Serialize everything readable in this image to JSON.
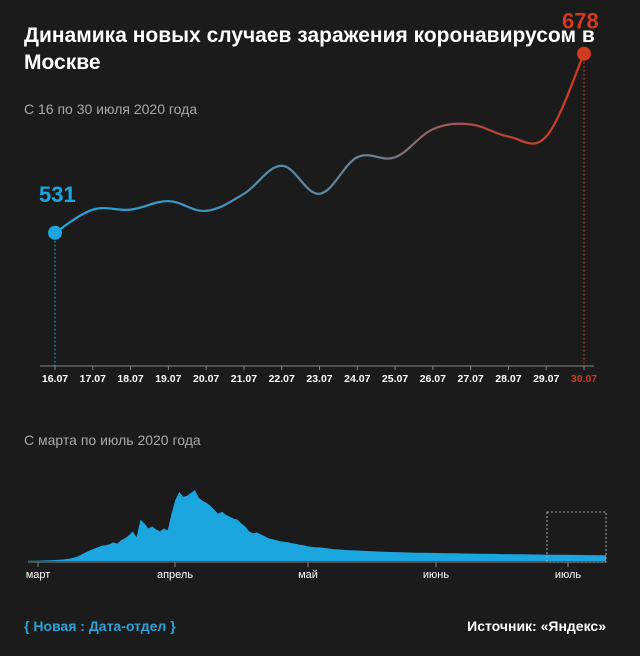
{
  "title": "Динамика новых случаев заражения коронавирусом в Москве",
  "footer": {
    "brand": "{ Новая : Дата-отдел }",
    "source": "Источник: «Яндекс»"
  },
  "colors": {
    "blue": "#1ba6e0",
    "red": "#d23a22",
    "axis": "#888888",
    "background": "#1b1b1b"
  },
  "chart_data": [
    {
      "type": "line",
      "title": "С 16 по 30 июля 2020 года",
      "categories": [
        "16.07",
        "17.07",
        "18.07",
        "19.07",
        "20.07",
        "21.07",
        "22.07",
        "23.07",
        "24.07",
        "25.07",
        "26.07",
        "27.07",
        "28.07",
        "29.07",
        "30.07"
      ],
      "values": [
        531,
        550,
        550,
        557,
        549,
        563,
        586,
        563,
        593,
        593,
        616,
        620,
        610,
        610,
        678
      ],
      "labels": {
        "first": "531",
        "last": "678"
      },
      "xlabel": "",
      "ylabel": "",
      "ylim": [
        420,
        640
      ]
    },
    {
      "type": "area",
      "title": "С марта по июль 2020 года",
      "month_labels": [
        "март",
        "апрель",
        "май",
        "июнь",
        "июль"
      ],
      "values": [
        2,
        3,
        3,
        4,
        5,
        6,
        8,
        10,
        12,
        15,
        20,
        25,
        35,
        50,
        70,
        90,
        110,
        125,
        140,
        155,
        160,
        170,
        190,
        175,
        210,
        230,
        260,
        300,
        240,
        420,
        380,
        330,
        350,
        320,
        300,
        330,
        310,
        480,
        620,
        700,
        650,
        660,
        690,
        720,
        640,
        610,
        590,
        560,
        520,
        480,
        500,
        470,
        450,
        430,
        420,
        380,
        350,
        300,
        280,
        290,
        270,
        250,
        230,
        220,
        210,
        200,
        195,
        190,
        180,
        175,
        165,
        160,
        150,
        145,
        140,
        138,
        135,
        130,
        125,
        120,
        118,
        115,
        112,
        110,
        108,
        106,
        104,
        102,
        100,
        98,
        96,
        95,
        94,
        92,
        90,
        90,
        88,
        87,
        86,
        85,
        84,
        84,
        83,
        82,
        82,
        81,
        80,
        80,
        79,
        78,
        78,
        77,
        76,
        76,
        75,
        75,
        74,
        74,
        73,
        72,
        72,
        71,
        70,
        70,
        70,
        69,
        68,
        68,
        68,
        67,
        66,
        66,
        66,
        65,
        65,
        64,
        64,
        64,
        63,
        63,
        62,
        62,
        61,
        61,
        60,
        60,
        60,
        59,
        59,
        58
      ],
      "ylim": [
        0,
        720
      ],
      "highlight": "16.07–30.07"
    }
  ]
}
